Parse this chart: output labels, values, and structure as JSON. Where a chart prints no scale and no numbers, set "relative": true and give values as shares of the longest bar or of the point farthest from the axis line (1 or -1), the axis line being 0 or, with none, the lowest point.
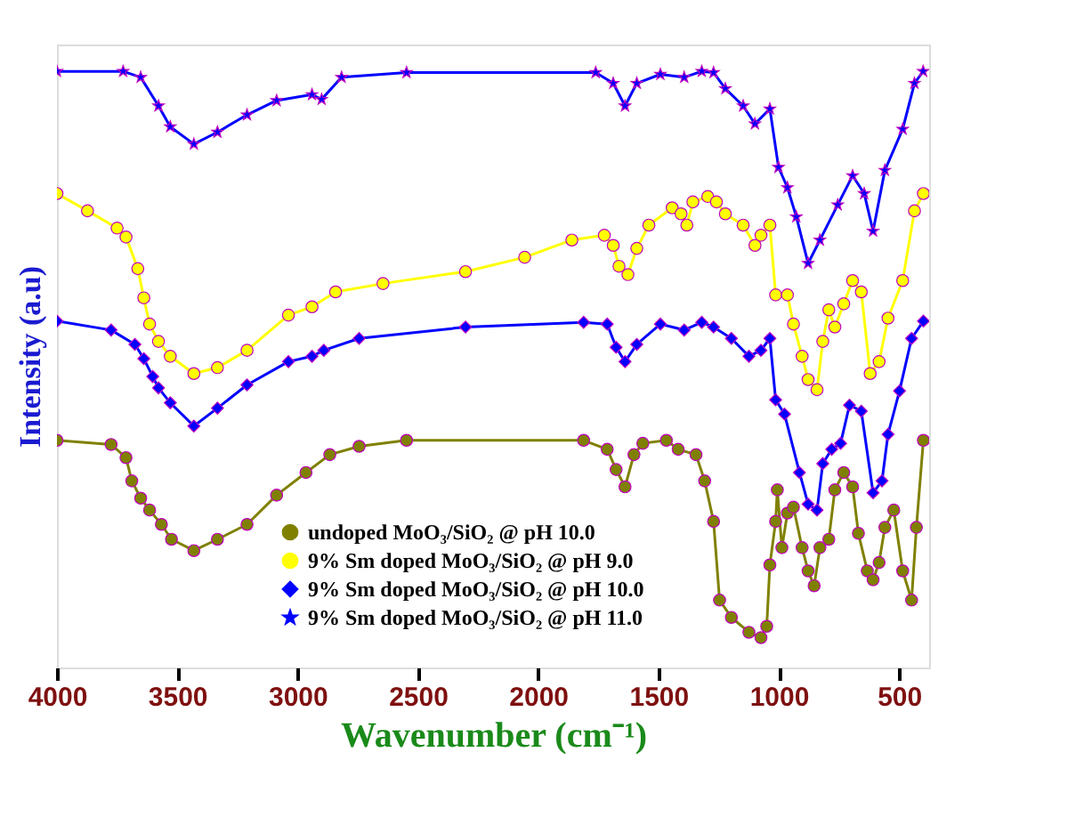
{
  "chart_data": {
    "type": "line",
    "relative": true,
    "xlabel": "Wavenumber (cm⁻¹)",
    "ylabel": "Intensity (a.u)",
    "xlim": [
      4000,
      375
    ],
    "xticks": [
      4000,
      3500,
      3000,
      2500,
      2000,
      1500,
      1000,
      500
    ],
    "grid": false,
    "legend": "bottom",
    "series": [
      {
        "name": "undoped MoO₃/SiO₂ @ pH 10.0",
        "color": "#808000",
        "marker": "circle",
        "x": [
          4000,
          3775,
          3713,
          3689,
          3652,
          3615,
          3566,
          3524,
          3431,
          3333,
          3210,
          3087,
          2965,
          2866,
          2744,
          2547,
          1811,
          1713,
          1676,
          1639,
          1602,
          1565,
          1467,
          1418,
          1344,
          1308,
          1271,
          1246,
          1197,
          1124,
          1074,
          1050,
          1037,
          1013,
          1006,
          987,
          964,
          939,
          903,
          878,
          853,
          829,
          792,
          767,
          730,
          693,
          669,
          632,
          608,
          583,
          559,
          522,
          485,
          448,
          428,
          399
        ],
        "values": [
          0.381,
          0.374,
          0.352,
          0.313,
          0.284,
          0.264,
          0.24,
          0.215,
          0.196,
          0.215,
          0.24,
          0.289,
          0.327,
          0.357,
          0.371,
          0.381,
          0.381,
          0.366,
          0.332,
          0.303,
          0.357,
          0.376,
          0.381,
          0.366,
          0.357,
          0.313,
          0.245,
          0.113,
          0.084,
          0.059,
          0.05,
          0.069,
          0.172,
          0.245,
          0.298,
          0.201,
          0.259,
          0.269,
          0.201,
          0.162,
          0.137,
          0.201,
          0.215,
          0.298,
          0.327,
          0.303,
          0.225,
          0.162,
          0.147,
          0.176,
          0.235,
          0.264,
          0.162,
          0.113,
          0.235,
          0.381
        ]
      },
      {
        "name": "9% Sm doped MoO₃/SiO₂ @ pH  9.0",
        "color": "#ffff00",
        "marker": "circle",
        "x": [
          4000,
          3873,
          3750,
          3713,
          3664,
          3639,
          3615,
          3578,
          3529,
          3431,
          3333,
          3210,
          3038,
          2940,
          2842,
          2645,
          2302,
          2056,
          1860,
          1725,
          1688,
          1664,
          1627,
          1590,
          1540,
          1443,
          1406,
          1382,
          1357,
          1295,
          1259,
          1222,
          1148,
          1099,
          1074,
          1037,
          1013,
          964,
          939,
          903,
          878,
          841,
          817,
          792,
          767,
          730,
          693,
          657,
          620,
          583,
          546,
          485,
          436,
          399
        ],
        "values": [
          0.795,
          0.766,
          0.737,
          0.722,
          0.669,
          0.62,
          0.576,
          0.547,
          0.522,
          0.493,
          0.503,
          0.532,
          0.591,
          0.605,
          0.63,
          0.644,
          0.664,
          0.688,
          0.717,
          0.725,
          0.708,
          0.673,
          0.659,
          0.703,
          0.742,
          0.771,
          0.761,
          0.742,
          0.781,
          0.79,
          0.781,
          0.761,
          0.742,
          0.708,
          0.725,
          0.742,
          0.625,
          0.625,
          0.576,
          0.522,
          0.483,
          0.466,
          0.547,
          0.6,
          0.571,
          0.61,
          0.649,
          0.63,
          0.493,
          0.513,
          0.586,
          0.649,
          0.766,
          0.795
        ]
      },
      {
        "name": "9% Sm doped MoO₃/SiO₂ @ pH 10.0",
        "color": "#0000ff",
        "marker": "diamond",
        "x": [
          4000,
          3775,
          3676,
          3639,
          3602,
          3578,
          3529,
          3431,
          3333,
          3210,
          3038,
          2940,
          2891,
          2744,
          2302,
          1811,
          1713,
          1676,
          1639,
          1590,
          1492,
          1393,
          1320,
          1271,
          1197,
          1124,
          1074,
          1037,
          1013,
          976,
          914,
          878,
          841,
          817,
          780,
          743,
          706,
          657,
          608,
          571,
          546,
          498,
          448,
          399
        ],
        "values": [
          0.581,
          0.566,
          0.542,
          0.518,
          0.488,
          0.469,
          0.444,
          0.405,
          0.435,
          0.474,
          0.513,
          0.522,
          0.532,
          0.552,
          0.571,
          0.579,
          0.576,
          0.537,
          0.513,
          0.542,
          0.576,
          0.566,
          0.579,
          0.571,
          0.552,
          0.522,
          0.532,
          0.552,
          0.449,
          0.425,
          0.327,
          0.274,
          0.264,
          0.342,
          0.366,
          0.376,
          0.44,
          0.43,
          0.293,
          0.313,
          0.391,
          0.464,
          0.552,
          0.581
        ]
      },
      {
        "name": "9% Sm doped MoO₃/SiO₂ @ pH 11.0",
        "color": "#0000ff",
        "marker": "star",
        "x": [
          4000,
          3725,
          3652,
          3578,
          3529,
          3431,
          3333,
          3210,
          3087,
          2940,
          2900,
          2817,
          2547,
          1761,
          1688,
          1639,
          1590,
          1492,
          1393,
          1320,
          1271,
          1222,
          1148,
          1099,
          1037,
          1001,
          964,
          927,
          878,
          829,
          755,
          693,
          645,
          608,
          559,
          485,
          436,
          400
        ],
        "values": [
          1.0,
          1.0,
          0.99,
          0.942,
          0.907,
          0.878,
          0.898,
          0.927,
          0.951,
          0.961,
          0.953,
          0.99,
          0.998,
          0.998,
          0.98,
          0.942,
          0.98,
          0.995,
          0.99,
          1.0,
          0.998,
          0.971,
          0.942,
          0.912,
          0.937,
          0.839,
          0.805,
          0.756,
          0.678,
          0.717,
          0.776,
          0.825,
          0.795,
          0.732,
          0.834,
          0.903,
          0.98,
          1.0
        ]
      }
    ]
  }
}
